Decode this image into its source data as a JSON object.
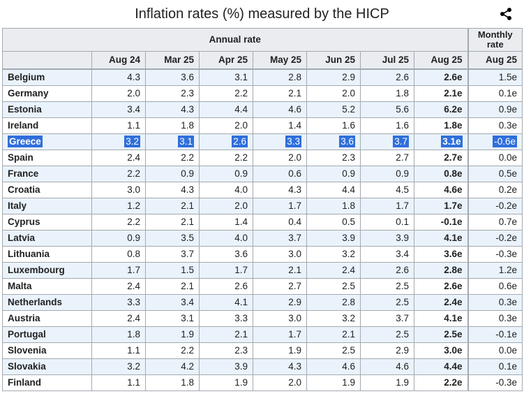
{
  "title": "Inflation rates (%) measured by the HICP",
  "icons": {
    "share": "share-icon"
  },
  "colors": {
    "highlight": "#2f6fdb",
    "header_bg": "#eaecf0",
    "stripe_bg": "#eaf3fb",
    "border": "#a2a9b1"
  },
  "table": {
    "group_headers": {
      "annual": "Annual rate",
      "monthly": "Monthly rate"
    },
    "columns": [
      "Aug 24",
      "Mar 25",
      "Apr 25",
      "May 25",
      "Jun 25",
      "Jul 25",
      "Aug 25"
    ],
    "monthly_column": "Aug 25"
  },
  "chart_data": {
    "type": "table",
    "title": "Inflation rates (%) measured by the HICP",
    "column_groups": [
      "Annual rate",
      "Monthly rate"
    ],
    "annual_columns": [
      "Aug 24",
      "Mar 25",
      "Apr 25",
      "May 25",
      "Jun 25",
      "Jul 25",
      "Aug 25"
    ],
    "monthly_columns": [
      "Aug 25"
    ],
    "rows": [
      {
        "country": "Belgium",
        "values": [
          "4.3",
          "3.6",
          "3.1",
          "2.8",
          "2.9",
          "2.6",
          "2.6e"
        ],
        "monthly": "1.5e",
        "highlighted": false
      },
      {
        "country": "Germany",
        "values": [
          "2.0",
          "2.3",
          "2.2",
          "2.1",
          "2.0",
          "1.8",
          "2.1e"
        ],
        "monthly": "0.1e",
        "highlighted": false
      },
      {
        "country": "Estonia",
        "values": [
          "3.4",
          "4.3",
          "4.4",
          "4.6",
          "5.2",
          "5.6",
          "6.2e"
        ],
        "monthly": "0.9e",
        "highlighted": false
      },
      {
        "country": "Ireland",
        "values": [
          "1.1",
          "1.8",
          "2.0",
          "1.4",
          "1.6",
          "1.6",
          "1.8e"
        ],
        "monthly": "0.3e",
        "highlighted": false
      },
      {
        "country": "Greece",
        "values": [
          "3.2",
          "3.1",
          "2.6",
          "3.3",
          "3.6",
          "3.7",
          "3.1e"
        ],
        "monthly": "-0.6e",
        "highlighted": true
      },
      {
        "country": "Spain",
        "values": [
          "2.4",
          "2.2",
          "2.2",
          "2.0",
          "2.3",
          "2.7",
          "2.7e"
        ],
        "monthly": "0.0e",
        "highlighted": false
      },
      {
        "country": "France",
        "values": [
          "2.2",
          "0.9",
          "0.9",
          "0.6",
          "0.9",
          "0.9",
          "0.8e"
        ],
        "monthly": "0.5e",
        "highlighted": false
      },
      {
        "country": "Croatia",
        "values": [
          "3.0",
          "4.3",
          "4.0",
          "4.3",
          "4.4",
          "4.5",
          "4.6e"
        ],
        "monthly": "0.2e",
        "highlighted": false
      },
      {
        "country": "Italy",
        "values": [
          "1.2",
          "2.1",
          "2.0",
          "1.7",
          "1.8",
          "1.7",
          "1.7e"
        ],
        "monthly": "-0.2e",
        "highlighted": false
      },
      {
        "country": "Cyprus",
        "values": [
          "2.2",
          "2.1",
          "1.4",
          "0.4",
          "0.5",
          "0.1",
          "-0.1e"
        ],
        "monthly": "0.7e",
        "highlighted": false
      },
      {
        "country": "Latvia",
        "values": [
          "0.9",
          "3.5",
          "4.0",
          "3.7",
          "3.9",
          "3.9",
          "4.1e"
        ],
        "monthly": "-0.2e",
        "highlighted": false
      },
      {
        "country": "Lithuania",
        "values": [
          "0.8",
          "3.7",
          "3.6",
          "3.0",
          "3.2",
          "3.4",
          "3.6e"
        ],
        "monthly": "-0.3e",
        "highlighted": false
      },
      {
        "country": "Luxembourg",
        "values": [
          "1.7",
          "1.5",
          "1.7",
          "2.1",
          "2.4",
          "2.6",
          "2.8e"
        ],
        "monthly": "1.2e",
        "highlighted": false
      },
      {
        "country": "Malta",
        "values": [
          "2.4",
          "2.1",
          "2.6",
          "2.7",
          "2.5",
          "2.5",
          "2.6e"
        ],
        "monthly": "0.6e",
        "highlighted": false
      },
      {
        "country": "Netherlands",
        "values": [
          "3.3",
          "3.4",
          "4.1",
          "2.9",
          "2.8",
          "2.5",
          "2.4e"
        ],
        "monthly": "0.3e",
        "highlighted": false
      },
      {
        "country": "Austria",
        "values": [
          "2.4",
          "3.1",
          "3.3",
          "3.0",
          "3.2",
          "3.7",
          "4.1e"
        ],
        "monthly": "0.3e",
        "highlighted": false
      },
      {
        "country": "Portugal",
        "values": [
          "1.8",
          "1.9",
          "2.1",
          "1.7",
          "2.1",
          "2.5",
          "2.5e"
        ],
        "monthly": "-0.1e",
        "highlighted": false
      },
      {
        "country": "Slovenia",
        "values": [
          "1.1",
          "2.2",
          "2.3",
          "1.9",
          "2.5",
          "2.9",
          "3.0e"
        ],
        "monthly": "0.0e",
        "highlighted": false
      },
      {
        "country": "Slovakia",
        "values": [
          "3.2",
          "4.2",
          "3.9",
          "4.3",
          "4.6",
          "4.6",
          "4.4e"
        ],
        "monthly": "0.1e",
        "highlighted": false
      },
      {
        "country": "Finland",
        "values": [
          "1.1",
          "1.8",
          "1.9",
          "2.0",
          "1.9",
          "1.9",
          "2.2e"
        ],
        "monthly": "-0.3e",
        "highlighted": false
      }
    ]
  }
}
